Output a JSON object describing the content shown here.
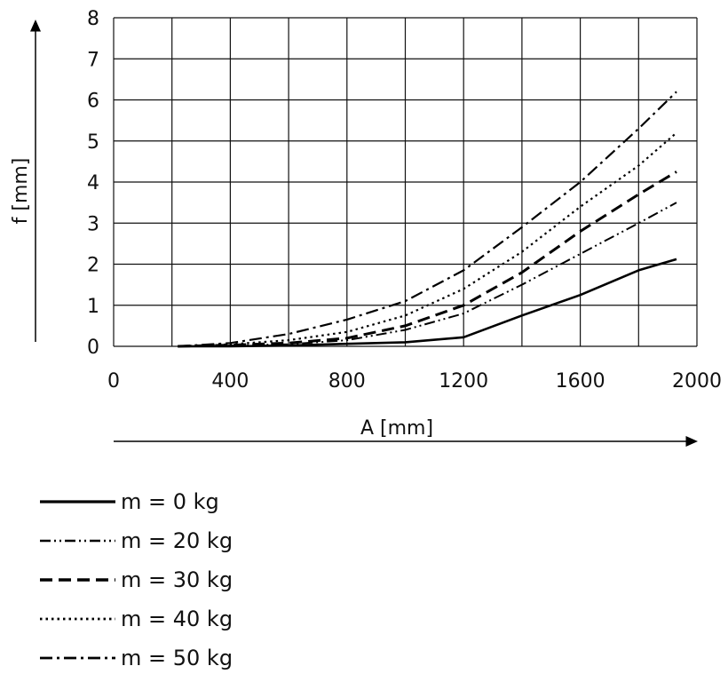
{
  "chart_data": {
    "type": "line",
    "title": "",
    "xlabel": "A [mm]",
    "ylabel": "f [mm]",
    "xlim": [
      0,
      2000
    ],
    "ylim": [
      0,
      8
    ],
    "x_ticks": [
      "0",
      "400",
      "800",
      "1200",
      "1600",
      "2000"
    ],
    "y_ticks": [
      "0",
      "1",
      "2",
      "3",
      "4",
      "5",
      "6",
      "7",
      "8"
    ],
    "grid": true,
    "legend_position": "below",
    "series": [
      {
        "name": "m = 0 kg",
        "line_style": "solid",
        "x": [
          220,
          400,
          600,
          800,
          1000,
          1200,
          1400,
          1600,
          1800,
          1930
        ],
        "y": [
          0,
          0,
          0.02,
          0.06,
          0.1,
          0.22,
          0.75,
          1.25,
          1.85,
          2.12
        ]
      },
      {
        "name": "m = 20 kg",
        "line_style": "dash-dot-dot",
        "x": [
          220,
          400,
          600,
          800,
          1000,
          1200,
          1400,
          1600,
          1800,
          1930
        ],
        "y": [
          0,
          0.02,
          0.05,
          0.15,
          0.4,
          0.8,
          1.5,
          2.25,
          3.0,
          3.5
        ]
      },
      {
        "name": "m = 30 kg",
        "line_style": "dashed",
        "x": [
          220,
          400,
          600,
          800,
          1000,
          1200,
          1400,
          1600,
          1800,
          1930
        ],
        "y": [
          0,
          0.03,
          0.08,
          0.2,
          0.5,
          1.0,
          1.8,
          2.8,
          3.7,
          4.25
        ]
      },
      {
        "name": "m = 40 kg",
        "line_style": "dotted",
        "x": [
          220,
          400,
          600,
          800,
          1000,
          1200,
          1400,
          1600,
          1800,
          1930
        ],
        "y": [
          0,
          0.05,
          0.15,
          0.35,
          0.75,
          1.4,
          2.3,
          3.4,
          4.4,
          5.2
        ]
      },
      {
        "name": "m = 50 kg",
        "line_style": "dash-dot",
        "x": [
          220,
          400,
          600,
          800,
          1000,
          1200,
          1400,
          1600,
          1800,
          1930
        ],
        "y": [
          0,
          0.08,
          0.3,
          0.65,
          1.1,
          1.85,
          2.9,
          4.0,
          5.3,
          6.2
        ]
      }
    ]
  }
}
